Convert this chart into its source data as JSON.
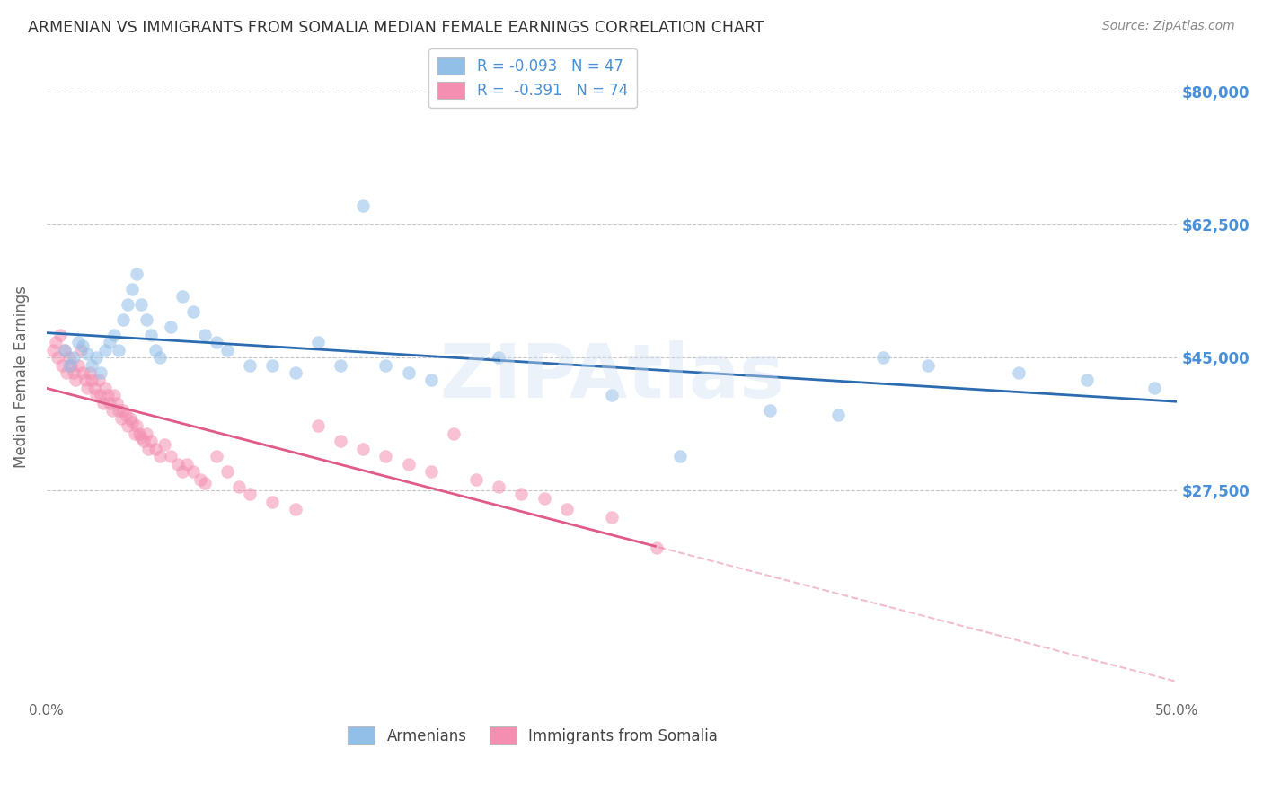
{
  "title": "ARMENIAN VS IMMIGRANTS FROM SOMALIA MEDIAN FEMALE EARNINGS CORRELATION CHART",
  "source": "Source: ZipAtlas.com",
  "ylabel": "Median Female Earnings",
  "xlim": [
    0.0,
    0.5
  ],
  "ylim": [
    0,
    85000
  ],
  "yticks": [
    0,
    27500,
    45000,
    62500,
    80000
  ],
  "ytick_labels": [
    "",
    "$27,500",
    "$45,000",
    "$62,500",
    "$80,000"
  ],
  "xticks": [
    0.0,
    0.1,
    0.2,
    0.3,
    0.4,
    0.5
  ],
  "xtick_labels": [
    "0.0%",
    "",
    "",
    "",
    "",
    "50.0%"
  ],
  "legend_top_line1": "R = -0.093   N = 47",
  "legend_top_line2": "R =  -0.391   N = 74",
  "legend_labels_bottom": [
    "Armenians",
    "Immigrants from Somalia"
  ],
  "background_color": "#ffffff",
  "grid_color": "#c8c8c8",
  "title_color": "#333333",
  "blue_scatter_color": "#92bfe8",
  "pink_scatter_color": "#f48fb1",
  "blue_line_color": "#2b6cb0",
  "pink_line_color": "#e05a8a",
  "right_ytick_color": "#4a90d9",
  "scatter_alpha": 0.55,
  "scatter_size": 110,
  "armenian_x": [
    0.008,
    0.01,
    0.012,
    0.014,
    0.016,
    0.018,
    0.02,
    0.022,
    0.024,
    0.026,
    0.028,
    0.03,
    0.032,
    0.034,
    0.036,
    0.038,
    0.04,
    0.042,
    0.044,
    0.046,
    0.048,
    0.05,
    0.055,
    0.06,
    0.065,
    0.07,
    0.075,
    0.08,
    0.09,
    0.1,
    0.11,
    0.12,
    0.13,
    0.14,
    0.15,
    0.16,
    0.17,
    0.2,
    0.25,
    0.28,
    0.32,
    0.35,
    0.37,
    0.39,
    0.43,
    0.46,
    0.49
  ],
  "armenian_y": [
    46000,
    44000,
    45000,
    47000,
    46500,
    45500,
    44000,
    45000,
    43000,
    46000,
    47000,
    48000,
    46000,
    50000,
    52000,
    54000,
    56000,
    52000,
    50000,
    48000,
    46000,
    45000,
    49000,
    53000,
    51000,
    48000,
    47000,
    46000,
    44000,
    44000,
    43000,
    47000,
    44000,
    65000,
    44000,
    43000,
    42000,
    45000,
    40000,
    32000,
    38000,
    37500,
    45000,
    44000,
    43000,
    42000,
    41000
  ],
  "somalia_x": [
    0.003,
    0.004,
    0.005,
    0.006,
    0.007,
    0.008,
    0.009,
    0.01,
    0.011,
    0.012,
    0.013,
    0.014,
    0.015,
    0.016,
    0.017,
    0.018,
    0.019,
    0.02,
    0.021,
    0.022,
    0.023,
    0.024,
    0.025,
    0.026,
    0.027,
    0.028,
    0.029,
    0.03,
    0.031,
    0.032,
    0.033,
    0.034,
    0.035,
    0.036,
    0.037,
    0.038,
    0.039,
    0.04,
    0.041,
    0.042,
    0.043,
    0.044,
    0.045,
    0.046,
    0.048,
    0.05,
    0.052,
    0.055,
    0.058,
    0.06,
    0.062,
    0.065,
    0.068,
    0.07,
    0.075,
    0.08,
    0.085,
    0.09,
    0.1,
    0.11,
    0.12,
    0.13,
    0.14,
    0.15,
    0.16,
    0.17,
    0.18,
    0.19,
    0.2,
    0.21,
    0.22,
    0.23,
    0.25,
    0.27
  ],
  "somalia_y": [
    46000,
    47000,
    45000,
    48000,
    44000,
    46000,
    43000,
    45000,
    44000,
    43000,
    42000,
    44000,
    46000,
    43000,
    42000,
    41000,
    43000,
    42000,
    41000,
    40000,
    42000,
    40000,
    39000,
    41000,
    40000,
    39000,
    38000,
    40000,
    39000,
    38000,
    37000,
    38000,
    37500,
    36000,
    37000,
    36500,
    35000,
    36000,
    35000,
    34500,
    34000,
    35000,
    33000,
    34000,
    33000,
    32000,
    33500,
    32000,
    31000,
    30000,
    31000,
    30000,
    29000,
    28500,
    32000,
    30000,
    28000,
    27000,
    26000,
    25000,
    36000,
    34000,
    33000,
    32000,
    31000,
    30000,
    35000,
    29000,
    28000,
    27000,
    26500,
    25000,
    24000,
    20000
  ]
}
